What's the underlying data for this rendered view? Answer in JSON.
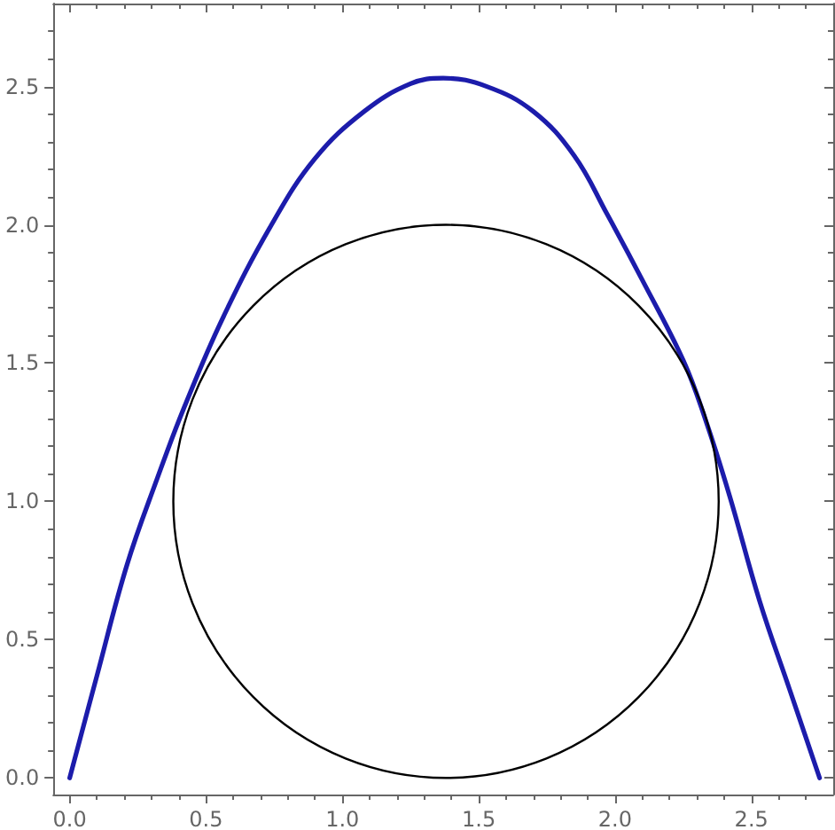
{
  "chart_data": {
    "type": "line",
    "xlim": [
      -0.06,
      2.8
    ],
    "ylim": [
      -0.06,
      2.8
    ],
    "xticks": [
      {
        "value": 0,
        "label": "0.0"
      },
      0.5,
      {
        "value": 1,
        "label": "1.0"
      },
      1.5,
      {
        "value": 2,
        "label": "2.0"
      },
      2.5
    ],
    "yticks": [
      {
        "value": 0,
        "label": "0.0"
      },
      0.5,
      {
        "value": 1,
        "label": "1.0"
      },
      1.5,
      {
        "value": 2,
        "label": "2.0"
      },
      2.5
    ],
    "series": [
      {
        "color": "#1c1cab",
        "x": [
          0,
          0.1,
          0.21,
          0.32,
          0.42,
          0.56,
          0.74,
          0.9,
          1.08,
          1.25,
          1.37,
          1.53,
          1.7,
          1.85,
          1.97,
          2.1,
          2.25,
          2.33,
          2.42,
          2.53,
          2.64,
          2.75
        ],
        "values": [
          0,
          0.37,
          0.77,
          1.08,
          1.34,
          1.66,
          2.0,
          2.24,
          2.41,
          2.51,
          2.53,
          2.5,
          2.41,
          2.25,
          2.04,
          1.8,
          1.51,
          1.3,
          1.02,
          0.64,
          0.32,
          0
        ]
      }
    ],
    "marker": "none",
    "line_style": "solid",
    "grid": false
  }
}
